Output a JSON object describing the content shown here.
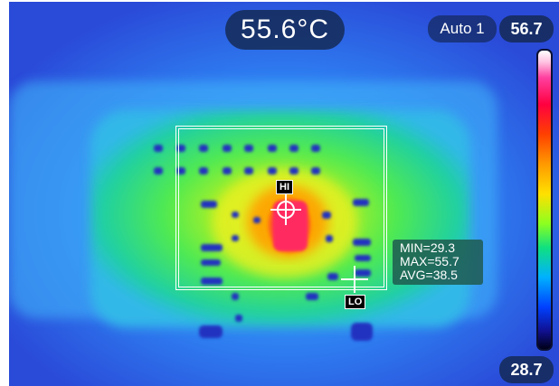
{
  "readout": {
    "center_temp": "55.6°C"
  },
  "mode": {
    "label": "Auto 1"
  },
  "scale": {
    "max": "56.7",
    "min": "28.7"
  },
  "roi_stats": {
    "min": "MIN=29.3",
    "max": "MAX=55.7",
    "avg": "AVG=38.5"
  },
  "markers": {
    "hot": "HI",
    "cold": "LO"
  },
  "colors": {
    "cold": "#2a4fe0",
    "warm": "#8cff20",
    "hot": "#ff2050",
    "pill_bg": "#142850"
  }
}
